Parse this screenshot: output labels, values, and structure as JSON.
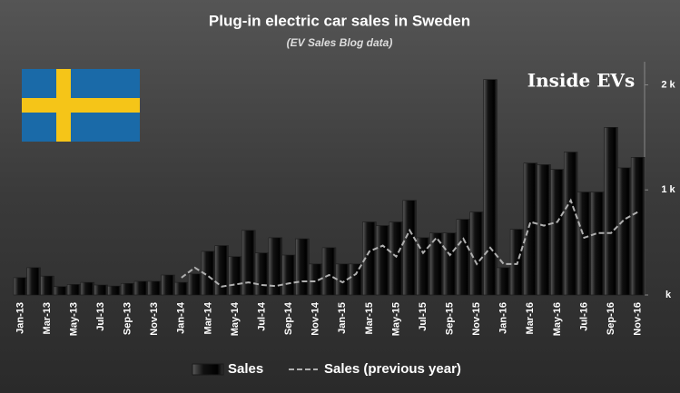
{
  "chart_data": {
    "type": "bar",
    "title": "Plug-in electric car sales in Sweden",
    "subtitle": "(EV Sales Blog data)",
    "logo": "Inside EVs",
    "categories": [
      "Jan-13",
      null,
      "Mar-13",
      null,
      "May-13",
      null,
      "Jul-13",
      null,
      "Sep-13",
      null,
      "Nov-13",
      null,
      "Jan-14",
      null,
      "Mar-14",
      null,
      "May-14",
      null,
      "Jul-14",
      null,
      "Sep-14",
      null,
      "Nov-14",
      null,
      "Jan-15",
      null,
      "Mar-15",
      null,
      "May-15",
      null,
      "Jul-15",
      null,
      "Sep-15",
      null,
      "Nov-15",
      null,
      "Jan-16",
      null,
      "Mar-16",
      null,
      "May-16",
      null,
      "Jul-16",
      null,
      "Sep-16",
      null,
      "Nov-16"
    ],
    "series": [
      {
        "name": "Sales",
        "type": "bar",
        "color": "#000000",
        "values": [
          165,
          260,
          180,
          80,
          100,
          120,
          95,
          85,
          110,
          130,
          130,
          190,
          120,
          200,
          415,
          470,
          365,
          615,
          400,
          545,
          380,
          535,
          295,
          450,
          295,
          295,
          695,
          660,
          695,
          900,
          545,
          590,
          590,
          720,
          790,
          2050,
          260,
          625,
          1255,
          1240,
          1195,
          1360,
          980,
          980,
          1595,
          1210,
          1310
        ]
      },
      {
        "name": "Sales (previous year)",
        "type": "line",
        "color": "#b0b0b0",
        "values": [
          null,
          null,
          null,
          null,
          null,
          null,
          null,
          null,
          null,
          null,
          null,
          null,
          165,
          260,
          180,
          80,
          100,
          120,
          95,
          85,
          110,
          130,
          130,
          190,
          120,
          200,
          415,
          470,
          365,
          615,
          400,
          545,
          380,
          535,
          295,
          450,
          295,
          295,
          695,
          660,
          695,
          900,
          545,
          590,
          590,
          720,
          790
        ]
      }
    ],
    "ylim": [
      0,
      2220
    ],
    "yticks": [
      {
        "value": 0,
        "label": "k"
      },
      {
        "value": 1000,
        "label": "1 k"
      },
      {
        "value": 2000,
        "label": "2 k"
      }
    ],
    "grid": false
  }
}
